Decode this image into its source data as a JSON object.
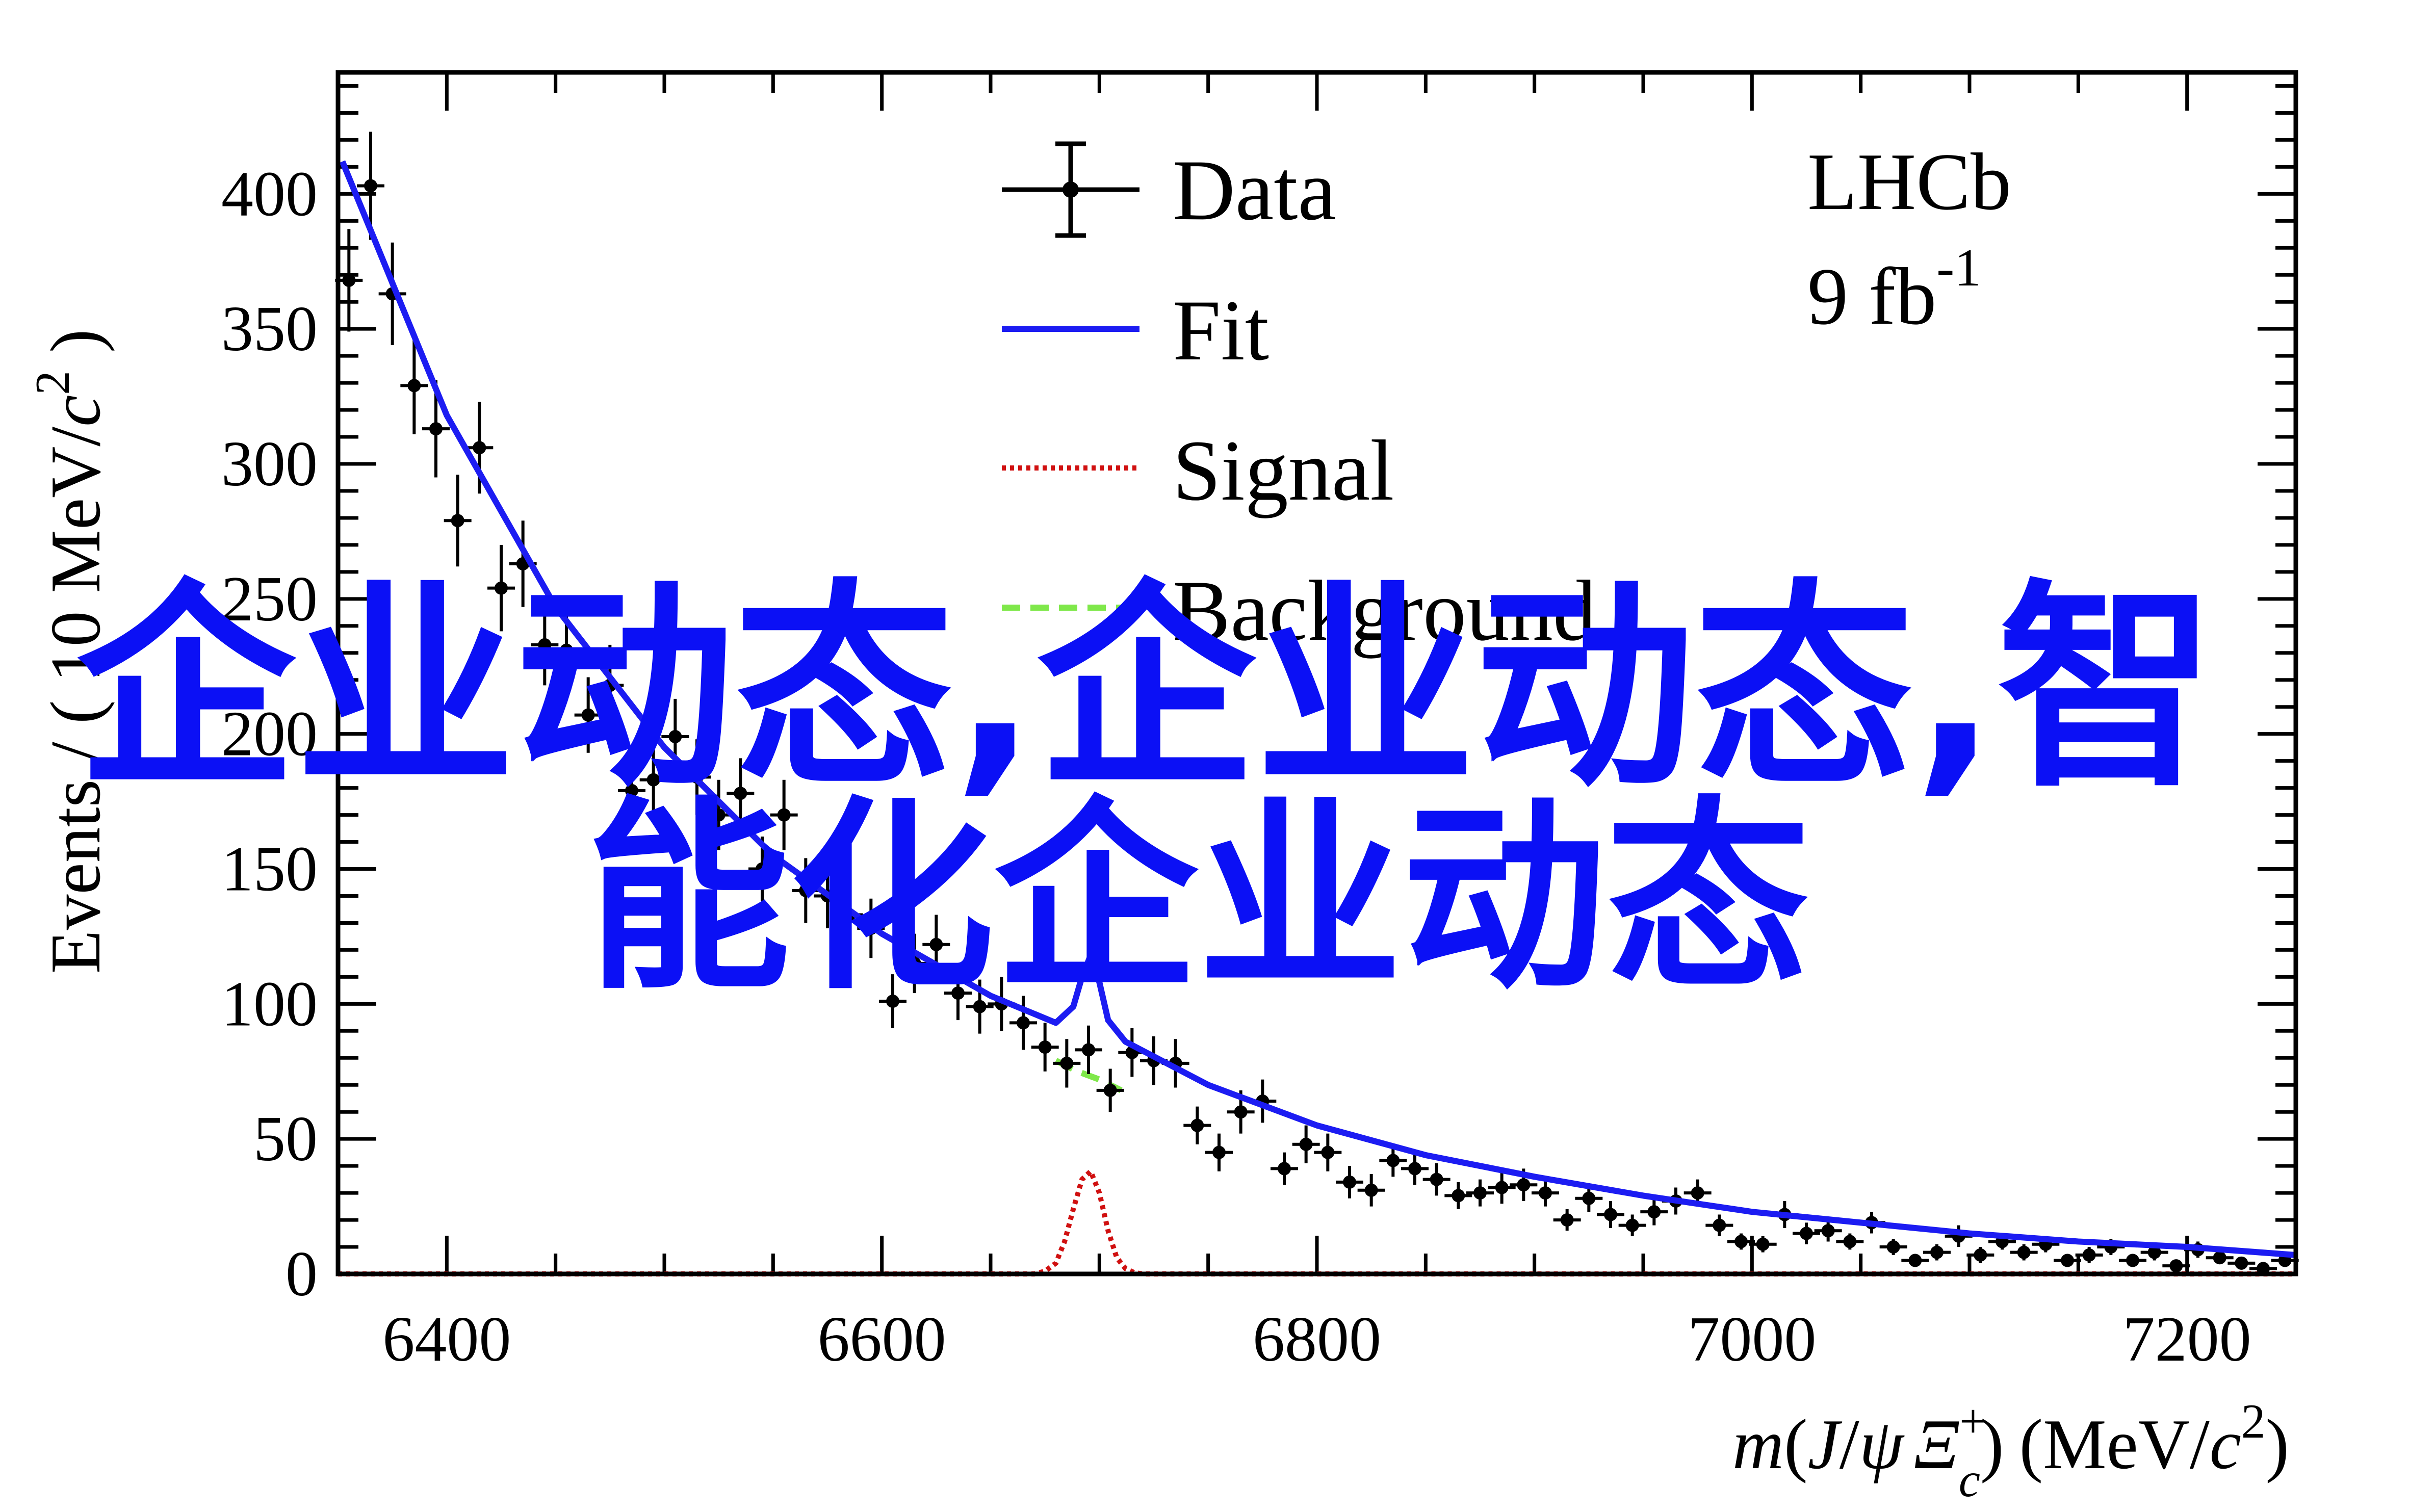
{
  "chart_data": {
    "type": "scatter",
    "xlabel_parts": {
      "m": "m",
      "open": "(",
      "J": "J",
      "slash": "/",
      "psi": "ψ",
      "xi": "Ξ",
      "plus": "+",
      "c": "c",
      "close": ")",
      "unit": "(MeV/",
      "unit_c": "c",
      "unit_sq": "2",
      "unit_close": ")"
    },
    "ylabel_parts": {
      "main": "Events / ( 10 MeV/",
      "c": "c",
      "sq": "2",
      "close": " )"
    },
    "xlim": [
      6350,
      7250
    ],
    "ylim": [
      0,
      445
    ],
    "x_ticks": [
      6400,
      6600,
      6800,
      7000,
      7200
    ],
    "y_ticks": [
      0,
      50,
      100,
      150,
      200,
      250,
      300,
      350,
      400
    ],
    "legend": {
      "placement": "top-center",
      "entries": [
        "Data",
        "Fit",
        "Signal",
        "Background"
      ]
    },
    "annotations": {
      "experiment": "LHCb",
      "lumi": "9 fb",
      "lumi_sup": "-1"
    },
    "colors": {
      "data": "#000000",
      "fit": "#1c1cf2",
      "signal": "#d01010",
      "background": "#7fe84a"
    },
    "series": [
      {
        "name": "Data",
        "x": [
          6355,
          6365,
          6375,
          6385,
          6395,
          6405,
          6415,
          6425,
          6435,
          6445,
          6455,
          6465,
          6475,
          6485,
          6495,
          6505,
          6515,
          6525,
          6535,
          6545,
          6555,
          6565,
          6575,
          6585,
          6595,
          6605,
          6615,
          6625,
          6635,
          6645,
          6655,
          6665,
          6675,
          6685,
          6695,
          6705,
          6715,
          6725,
          6735,
          6745,
          6755,
          6765,
          6775,
          6785,
          6795,
          6805,
          6815,
          6825,
          6835,
          6845,
          6855,
          6865,
          6875,
          6885,
          6895,
          6905,
          6915,
          6925,
          6935,
          6945,
          6955,
          6965,
          6975,
          6985,
          6995,
          7005,
          7015,
          7025,
          7035,
          7045,
          7055,
          7065,
          7075,
          7085,
          7095,
          7105,
          7115,
          7125,
          7135,
          7145,
          7155,
          7165,
          7175,
          7185,
          7195,
          7205,
          7215,
          7225,
          7235,
          7245
        ],
        "y": [
          368,
          403,
          363,
          329,
          313,
          279,
          306,
          254,
          263,
          233,
          231,
          207,
          218,
          179,
          183,
          199,
          184,
          170,
          178,
          150,
          170,
          142,
          140,
          133,
          128,
          101,
          115,
          122,
          104,
          99,
          100,
          93,
          84,
          78,
          83,
          68,
          82,
          79,
          78,
          55,
          45,
          60,
          64,
          39,
          48,
          45,
          34,
          31,
          42,
          39,
          35,
          29,
          30,
          32,
          33,
          30,
          20,
          28,
          22,
          18,
          23,
          27,
          30,
          18,
          12,
          11,
          22,
          15,
          16,
          12,
          19,
          10,
          5,
          8,
          14,
          7,
          12,
          8,
          11,
          5,
          7,
          10,
          5,
          8,
          3,
          9,
          6,
          4,
          2,
          5
        ],
        "yerr": [
          19,
          20,
          19,
          18,
          18,
          17,
          17,
          16,
          16,
          15,
          15,
          14,
          15,
          13,
          14,
          14,
          14,
          13,
          13,
          12,
          13,
          12,
          12,
          12,
          11,
          10,
          11,
          11,
          10,
          10,
          10,
          10,
          9,
          9,
          9,
          8,
          9,
          9,
          9,
          7,
          7,
          8,
          8,
          6,
          7,
          7,
          6,
          6,
          6,
          6,
          6,
          5,
          5,
          6,
          6,
          5,
          4,
          5,
          5,
          4,
          5,
          5,
          5,
          4,
          3,
          3,
          5,
          4,
          4,
          3,
          4,
          3,
          2,
          3,
          4,
          3,
          3,
          3,
          3,
          2,
          3,
          3,
          2,
          3,
          2,
          3,
          2,
          2,
          1,
          2
        ]
      },
      {
        "name": "Fit",
        "x": [
          6352,
          6400,
          6450,
          6500,
          6550,
          6600,
          6650,
          6680,
          6688,
          6692,
          6696,
          6700,
          6704,
          6712,
          6750,
          6800,
          6850,
          6900,
          6950,
          7000,
          7050,
          7100,
          7150,
          7200,
          7250
        ],
        "y": [
          412,
          318,
          247,
          195,
          155,
          126,
          103,
          93,
          99,
          110,
          118,
          108,
          94,
          86,
          70,
          55,
          44,
          36,
          29,
          23,
          19,
          15,
          12,
          10,
          7
        ]
      },
      {
        "name": "Signal",
        "x": [
          6670,
          6675,
          6680,
          6684,
          6688,
          6692,
          6696,
          6700,
          6704,
          6708,
          6712,
          6716,
          6720
        ],
        "y": [
          0,
          1,
          4,
          12,
          24,
          35,
          38,
          30,
          16,
          6,
          2,
          0.5,
          0
        ]
      },
      {
        "name": "Background",
        "x": [
          6680,
          6690,
          6700,
          6710
        ],
        "y": [
          79,
          75,
          72,
          68
        ]
      }
    ]
  },
  "overlay": {
    "line1": "企业动态,企业动态,智",
    "line2": "能化企业动态"
  }
}
